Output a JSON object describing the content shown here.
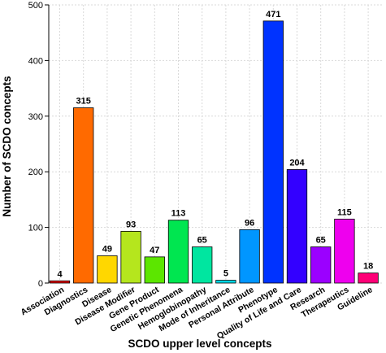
{
  "chart_data": {
    "type": "bar",
    "title": "",
    "xlabel": "SCDO upper level concepts",
    "ylabel": "Number of SCDO concepts",
    "ylim": [
      0,
      500
    ],
    "yticks": [
      0,
      100,
      200,
      300,
      400,
      500
    ],
    "grid": true,
    "categories": [
      "Association",
      "Diagnostics",
      "Disease",
      "Disease Modifier",
      "Gene Product",
      "Genetic Phenomena",
      "Hemoglobinopathy",
      "Mode of Inheritance",
      "Personal Attribute",
      "Phenotype",
      "Quality of Life and Care",
      "Research",
      "Therapeutics",
      "Guideline"
    ],
    "values": [
      4,
      315,
      49,
      93,
      47,
      113,
      65,
      5,
      96,
      471,
      204,
      65,
      115,
      18
    ],
    "colors": [
      "#e8000b",
      "#ff6a00",
      "#ffd700",
      "#b5e61d",
      "#5ce600",
      "#00e650",
      "#00e6a0",
      "#00d8e6",
      "#0096ff",
      "#0033ff",
      "#3300ff",
      "#9b00ff",
      "#ee00ee",
      "#ff0077"
    ]
  }
}
